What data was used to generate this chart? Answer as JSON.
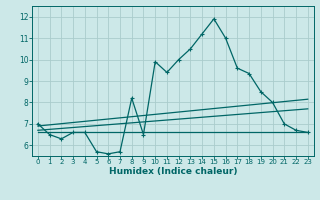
{
  "xlabel": "Humidex (Indice chaleur)",
  "background_color": "#cce8e8",
  "grid_color": "#aacccc",
  "line_color": "#006666",
  "xlim": [
    -0.5,
    23.5
  ],
  "ylim": [
    5.5,
    12.5
  ],
  "yticks": [
    6,
    7,
    8,
    9,
    10,
    11,
    12
  ],
  "xticks": [
    0,
    1,
    2,
    3,
    4,
    5,
    6,
    7,
    8,
    9,
    10,
    11,
    12,
    13,
    14,
    15,
    16,
    17,
    18,
    19,
    20,
    21,
    22,
    23
  ],
  "line1_x": [
    0,
    1,
    2,
    3,
    4,
    5,
    6,
    7,
    8,
    9,
    10,
    11,
    12,
    13,
    14,
    15,
    16,
    17,
    18,
    19,
    20,
    21,
    22,
    23
  ],
  "line1_y": [
    7.0,
    6.5,
    6.3,
    6.6,
    6.6,
    5.7,
    5.6,
    5.7,
    8.2,
    6.5,
    9.9,
    9.4,
    10.0,
    10.5,
    11.2,
    11.9,
    11.0,
    9.6,
    9.35,
    8.5,
    8.0,
    7.0,
    6.7,
    6.6
  ],
  "line2_x": [
    0,
    23
  ],
  "line2_y": [
    6.6,
    6.6
  ],
  "line3_x": [
    0,
    23
  ],
  "line3_y": [
    6.7,
    7.7
  ],
  "line4_x": [
    0,
    23
  ],
  "line4_y": [
    6.9,
    8.15
  ]
}
